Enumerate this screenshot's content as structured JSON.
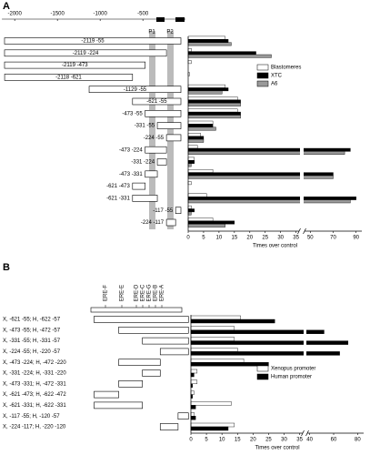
{
  "chart_data": [
    {
      "type": "hbar",
      "panel": "A",
      "genome_axis": {
        "xlim": [
          -2150,
          0
        ],
        "xticks": [
          -2000,
          -1500,
          -1000,
          -500
        ]
      },
      "regions": [
        "P1",
        "P2"
      ],
      "constructs": [
        {
          "label": "-2119 -55",
          "start": -2119,
          "end": -55
        },
        {
          "label": "-2119 -224",
          "start": -2119,
          "end": -224
        },
        {
          "label": "-2119 -473",
          "start": -2119,
          "end": -473
        },
        {
          "label": "-2118 -621",
          "start": -2118,
          "end": -621
        },
        {
          "label": "-1129 -55",
          "start": -1129,
          "end": -55
        },
        {
          "label": "-621 -55",
          "start": -621,
          "end": -55
        },
        {
          "label": "-473 -55",
          "start": -473,
          "end": -55
        },
        {
          "label": "-331 -55",
          "start": -331,
          "end": -55
        },
        {
          "label": "-224 -55",
          "start": -224,
          "end": -55
        },
        {
          "label": "-473 -224",
          "start": -473,
          "end": -224
        },
        {
          "label": "-331 -224",
          "start": -331,
          "end": -224
        },
        {
          "label": "-473 -331",
          "start": -473,
          "end": -331
        },
        {
          "label": "-621 -473",
          "start": -621,
          "end": -473
        },
        {
          "label": "-621 -331",
          "start": -621,
          "end": -331
        },
        {
          "label": "-117 -55",
          "start": -117,
          "end": -55
        },
        {
          "label": "-224 -117",
          "start": -224,
          "end": -117
        }
      ],
      "series": [
        {
          "name": "Blastomeres",
          "color": "#ffffff",
          "values": [
            12,
            1,
            1,
            0.5,
            12,
            16,
            16,
            8,
            4,
            3,
            2,
            8,
            1,
            6,
            1,
            8
          ]
        },
        {
          "name": "XTC",
          "color": "#000000",
          "values": [
            13,
            22,
            0,
            0,
            13,
            17,
            17,
            8,
            5,
            85,
            2,
            70,
            0,
            90,
            2,
            15
          ]
        },
        {
          "name": "A6",
          "color": "#999999",
          "values": [
            14,
            27,
            0,
            0,
            11,
            17,
            17,
            9,
            5,
            80,
            1,
            70,
            0,
            85,
            1,
            12
          ]
        }
      ],
      "xlim": [
        0,
        95
      ],
      "axis_break": [
        36,
        45
      ],
      "xticks": [
        0,
        5,
        10,
        15,
        20,
        25,
        30,
        35,
        50,
        70,
        90
      ],
      "xlabel": "Times over control"
    },
    {
      "type": "hbar",
      "panel": "B",
      "elements": [
        "ERE-F",
        "ERE-E",
        "ERE-D",
        "ERE-C",
        "ERE-G",
        "ERE-B",
        "ERE-A"
      ],
      "construct_axis": {
        "xlim": [
          -640,
          -40
        ]
      },
      "constructs": [
        {
          "label": "X, -621 -55; H, -622 -57",
          "start": -621,
          "end": -55
        },
        {
          "label": "X, -473 -55; H, -472 -57",
          "start": -473,
          "end": -55
        },
        {
          "label": "X, -331 -55; H, -331 -57",
          "start": -331,
          "end": -55
        },
        {
          "label": "X, -224 -55; H, -220 -57",
          "start": -224,
          "end": -55
        },
        {
          "label": "X, -473 -224; H, -472 -220",
          "start": -473,
          "end": -224
        },
        {
          "label": "X, -331 -224; H, -331 -220",
          "start": -331,
          "end": -224
        },
        {
          "label": "X, -473 -331; H, -472 -331",
          "start": -473,
          "end": -331
        },
        {
          "label": "X, -621 -473; H, -622 -472",
          "start": -621,
          "end": -473
        },
        {
          "label": "X, -621 -331; H, -622 -331",
          "start": -621,
          "end": -331
        },
        {
          "label": "X, -117 -55; H, -120 -57",
          "start": -117,
          "end": -55
        },
        {
          "label": "X, -224 -117; H, -220 -120",
          "start": -224,
          "end": -117
        }
      ],
      "series": [
        {
          "name": "Xenopus promoter",
          "color": "#ffffff",
          "values": [
            16,
            14,
            14,
            15,
            17,
            2,
            2,
            1,
            13,
            1,
            14
          ]
        },
        {
          "name": "Human promoter",
          "color": "#000000",
          "values": [
            27,
            52,
            72,
            65,
            25,
            1,
            0.5,
            0.5,
            1.5,
            1.5,
            12
          ]
        }
      ],
      "xlim": [
        0,
        85
      ],
      "axis_break": [
        36,
        38
      ],
      "xticks": [
        0,
        5,
        10,
        15,
        20,
        25,
        30,
        35,
        40,
        60,
        80
      ],
      "xlabel": "Times over control"
    }
  ]
}
